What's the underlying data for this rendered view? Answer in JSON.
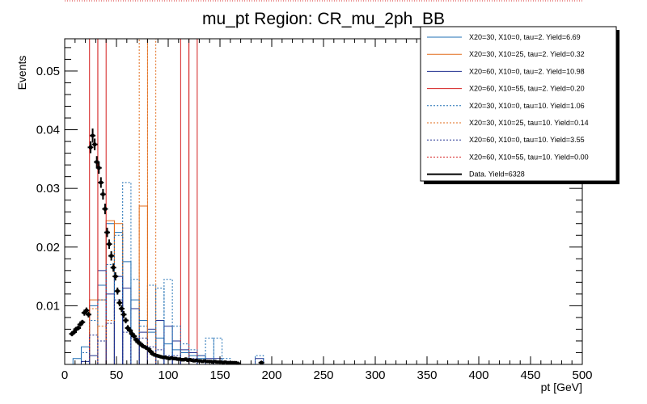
{
  "chart_data": {
    "type": "histogram",
    "title": "mu_pt Region: CR_mu_2ph_BB",
    "xlabel": "pt [GeV]",
    "ylabel": "Events",
    "xlim": [
      0,
      500
    ],
    "ylim": [
      0,
      0.0555
    ],
    "x_ticks": [
      0,
      50,
      100,
      150,
      200,
      250,
      300,
      350,
      400,
      450,
      500
    ],
    "x_tick_labels": [
      "0",
      "50",
      "100",
      "150",
      "200",
      "250",
      "300",
      "350",
      "400",
      "450",
      "500"
    ],
    "y_ticks": [
      0.01,
      0.02,
      0.03,
      0.04,
      0.05
    ],
    "y_tick_labels": [
      "0.01",
      "0.02",
      "0.03",
      "0.04",
      "0.05"
    ],
    "legend_position": "top-right",
    "series": [
      {
        "name": "X20=30, X10=0, tau=2. Yield=6.69",
        "color": "#1f6fb4",
        "style": "solid",
        "bin_width": 8,
        "bins": [
          [
            8,
            0.001
          ],
          [
            16,
            0.003
          ],
          [
            24,
            0.01
          ],
          [
            32,
            0.0135
          ],
          [
            40,
            0.024
          ],
          [
            48,
            0.0225
          ],
          [
            56,
            0.0175
          ],
          [
            64,
            0.011
          ],
          [
            72,
            0.0075
          ],
          [
            80,
            0.0055
          ],
          [
            88,
            0.0045
          ],
          [
            96,
            0.0035
          ],
          [
            104,
            0.0025
          ],
          [
            112,
            0.002
          ],
          [
            120,
            0.0015
          ],
          [
            128,
            0.001
          ],
          [
            136,
            0.0005
          ],
          [
            144,
            0.0005
          ]
        ]
      },
      {
        "name": "X20=30, X10=25, tau=2. Yield=0.32",
        "color": "#e26b1a",
        "style": "solid",
        "bin_width": 8,
        "bins": [
          [
            24,
            0.011
          ],
          [
            32,
            0.011
          ],
          [
            40,
            0.0245
          ],
          [
            48,
            0.024
          ],
          [
            72,
            0.027
          ]
        ]
      },
      {
        "name": "X20=60, X10=0, tau=2. Yield=10.98",
        "color": "#1f2f8f",
        "style": "solid",
        "bin_width": 8,
        "bins": [
          [
            16,
            0.0005
          ],
          [
            24,
            0.0015
          ],
          [
            32,
            0.016
          ],
          [
            40,
            0.012
          ],
          [
            48,
            0.015
          ],
          [
            56,
            0.013
          ],
          [
            64,
            0.0095
          ],
          [
            72,
            0.0055
          ],
          [
            80,
            0.006
          ],
          [
            88,
            0.0075
          ],
          [
            96,
            0.0065
          ],
          [
            104,
            0.004
          ],
          [
            112,
            0.0025
          ],
          [
            120,
            0.002
          ],
          [
            128,
            0.0015
          ],
          [
            136,
            0.001
          ],
          [
            144,
            0.001
          ],
          [
            152,
            0.0005
          ],
          [
            184,
            0.001
          ]
        ]
      },
      {
        "name": "X20=60, X10=55, tau=2. Yield=0.20",
        "color": "#d42020",
        "style": "solid",
        "bin_width": 8,
        "bins": [
          [
            24,
            0.0555
          ],
          [
            32,
            0.0555
          ],
          [
            112,
            0.0555
          ],
          [
            120,
            0.0555
          ]
        ]
      },
      {
        "name": "X20=30, X10=0, tau=10. Yield=1.06",
        "color": "#1f6fb4",
        "style": "dotted",
        "bin_width": 8,
        "bins": [
          [
            16,
            0.002
          ],
          [
            24,
            0.0075
          ],
          [
            32,
            0.011
          ],
          [
            40,
            0.017
          ],
          [
            48,
            0.022
          ],
          [
            56,
            0.031
          ],
          [
            64,
            0.0145
          ],
          [
            72,
            0.0065
          ],
          [
            80,
            0.0135
          ],
          [
            88,
            0.013
          ],
          [
            96,
            0.0145
          ],
          [
            104,
            0.0065
          ],
          [
            112,
            0.0035
          ],
          [
            120,
            0.0025
          ],
          [
            128,
            0.0015
          ],
          [
            136,
            0.0045
          ],
          [
            144,
            0.0045
          ],
          [
            152,
            0.001
          ],
          [
            184,
            0.0015
          ]
        ]
      },
      {
        "name": "X20=30, X10=25, tau=10. Yield=0.14",
        "color": "#e26b1a",
        "style": "dotted",
        "bin_width": 8,
        "bins": [
          [
            24,
            0.0095
          ],
          [
            32,
            0.0065
          ],
          [
            40,
            0.0075
          ],
          [
            72,
            0.0555
          ],
          [
            80,
            0.0555
          ]
        ]
      },
      {
        "name": "X20=60, X10=0, tau=10. Yield=3.55",
        "color": "#1f2f8f",
        "style": "dotted",
        "bin_width": 8,
        "bins": [
          [
            16,
            0.0005
          ],
          [
            24,
            0.005
          ],
          [
            32,
            0.004
          ],
          [
            40,
            0.007
          ],
          [
            48,
            0.011
          ],
          [
            56,
            0.0055
          ],
          [
            64,
            0.0045
          ],
          [
            72,
            0.0045
          ],
          [
            80,
            0.003
          ],
          [
            88,
            0.0025
          ],
          [
            96,
            0.0015
          ],
          [
            104,
            0.0015
          ],
          [
            112,
            0.001
          ],
          [
            120,
            0.001
          ],
          [
            128,
            0.0005
          ],
          [
            136,
            0.0005
          ]
        ]
      },
      {
        "name": "X20=60, X10=55, tau=10. Yield=0.00",
        "color": "#d42020",
        "style": "dotted",
        "bin_width": 8,
        "bins": []
      },
      {
        "name": "Data. Yield=6328",
        "color": "#000000",
        "style": "points",
        "x": [
          7,
          9,
          11,
          13,
          15,
          17,
          19,
          21,
          23,
          25,
          27,
          29,
          31,
          33,
          35,
          37,
          39,
          41,
          43,
          45,
          47,
          49,
          51,
          53,
          55,
          57,
          59,
          61,
          63,
          65,
          67,
          69,
          71,
          73,
          75,
          77,
          79,
          81,
          83,
          85,
          87,
          89,
          91,
          93,
          95,
          97,
          99,
          101,
          103,
          105,
          107,
          109,
          111,
          113,
          115,
          117,
          119,
          121,
          123,
          125,
          127,
          129,
          131,
          133,
          135,
          137,
          139,
          141,
          143,
          145,
          147,
          149,
          151,
          153,
          155,
          157,
          159,
          161,
          163,
          165,
          167,
          190
        ],
        "y": [
          0.0052,
          0.0055,
          0.006,
          0.0062,
          0.0068,
          0.0072,
          0.0088,
          0.0092,
          0.0085,
          0.037,
          0.039,
          0.0375,
          0.0345,
          0.0335,
          0.031,
          0.029,
          0.0265,
          0.0225,
          0.0205,
          0.0185,
          0.0165,
          0.015,
          0.0125,
          0.0105,
          0.0095,
          0.0085,
          0.0075,
          0.0062,
          0.0058,
          0.0052,
          0.0048,
          0.0042,
          0.0038,
          0.0035,
          0.0032,
          0.003,
          0.0028,
          0.0026,
          0.0022,
          0.0018,
          0.0016,
          0.0015,
          0.0014,
          0.0013,
          0.0012,
          0.0012,
          0.0011,
          0.001,
          0.0011,
          0.001,
          0.001,
          0.0009,
          0.0009,
          0.0008,
          0.0008,
          0.0009,
          0.0007,
          0.0008,
          0.0007,
          0.0006,
          0.0007,
          0.0006,
          0.0006,
          0.0005,
          0.0006,
          0.0005,
          0.0005,
          0.0005,
          0.0004,
          0.0005,
          0.0004,
          0.0004,
          0.0004,
          0.0003,
          0.0004,
          0.0003,
          0.0003,
          0.0003,
          0.0003,
          0.0003,
          0.0002,
          0.0003
        ],
        "yerr": [
          0.0004,
          0.0004,
          0.0004,
          0.0004,
          0.0004,
          0.0004,
          0.0005,
          0.0005,
          0.0005,
          0.001,
          0.0012,
          0.001,
          0.001,
          0.001,
          0.0009,
          0.0009,
          0.0009,
          0.0008,
          0.0008,
          0.0008,
          0.0007,
          0.0007,
          0.0006,
          0.0006,
          0.0006,
          0.0006,
          0.0005,
          0.0005,
          0.0005,
          0.0005,
          0.0004,
          0.0004,
          0.0004,
          0.0004,
          0.0004,
          0.0003,
          0.0003,
          0.0003,
          0.0003,
          0.0003,
          0.0003,
          0.0003,
          0.0003,
          0.0003,
          0.0003,
          0.0003,
          0.0003,
          0.0003,
          0.0003,
          0.0003,
          0.0003,
          0.0003,
          0.0003,
          0.0003,
          0.0003,
          0.0003,
          0.0003,
          0.0003,
          0.0003,
          0.0002,
          0.0002,
          0.0002,
          0.0002,
          0.0002,
          0.0002,
          0.0002,
          0.0002,
          0.0002,
          0.0002,
          0.0002,
          0.0002,
          0.0002,
          0.0002,
          0.0002,
          0.0002,
          0.0002,
          0.0002,
          0.0002,
          0.0002,
          0.0002,
          0.0002,
          0.0002
        ]
      }
    ]
  }
}
